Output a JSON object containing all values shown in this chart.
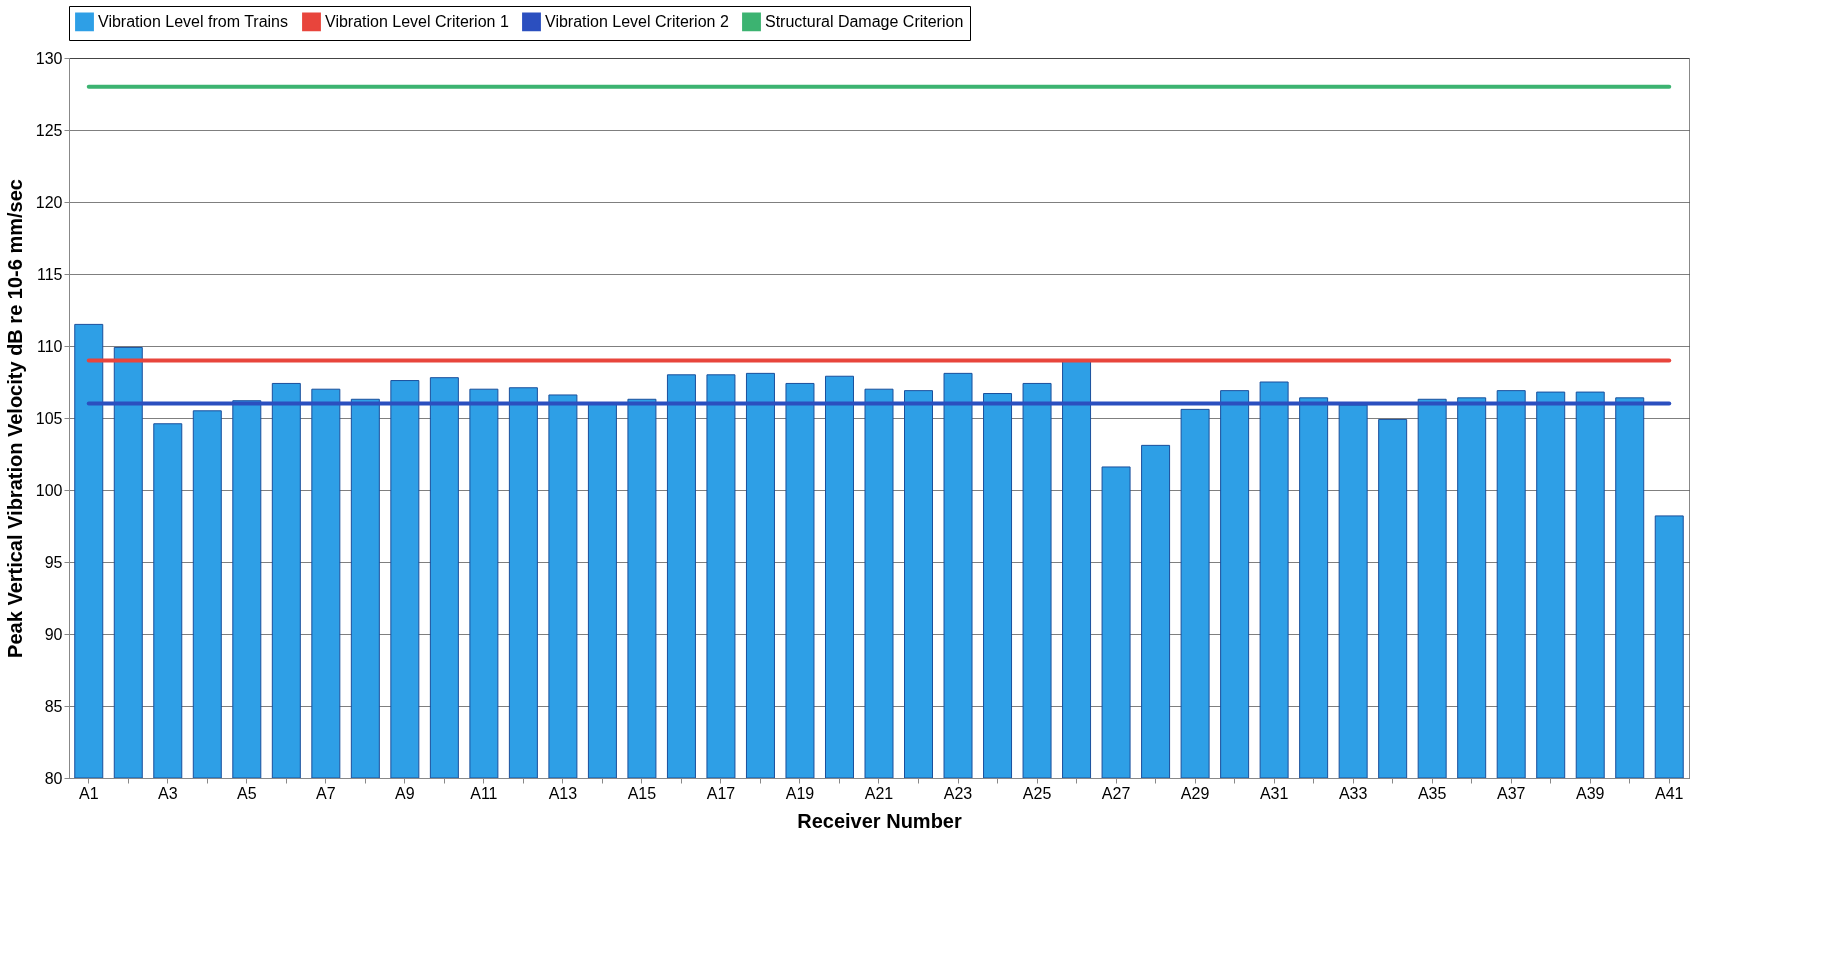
{
  "chart_data": {
    "type": "bar",
    "xlabel": "Receiver Number",
    "ylabel": "Peak Vertical Vibration Velocity dB re 10-6 mm/sec",
    "categories": [
      "A1",
      null,
      "A3",
      null,
      "A5",
      null,
      "A7",
      null,
      "A9",
      null,
      "A11",
      null,
      "A13",
      null,
      "A15",
      null,
      "A17",
      null,
      "A19",
      null,
      "A21",
      null,
      "A23",
      null,
      "A25",
      null,
      "A27",
      null,
      "A29",
      null,
      "A31",
      null,
      "A33",
      null,
      "A35",
      null,
      "A37",
      null,
      "A39",
      null,
      "A41"
    ],
    "series": [
      {
        "name": "Vibration Level from Trains",
        "color": "#2e9fe6",
        "values": [
          111.5,
          109.9,
          104.6,
          105.5,
          106.2,
          107.4,
          107.0,
          106.3,
          107.6,
          107.8,
          107.0,
          107.1,
          106.6,
          106.0,
          106.3,
          108.0,
          108.0,
          108.1,
          107.4,
          107.9,
          107.0,
          106.9,
          108.1,
          106.7,
          107.4,
          109.0,
          101.6,
          103.1,
          105.6,
          106.9,
          107.5,
          106.4,
          105.9,
          104.9,
          106.3,
          106.4,
          106.9,
          106.8,
          106.8,
          106.4,
          98.2
        ]
      },
      {
        "name": "Vibration Level Criterion 1",
        "type": "line",
        "color": "#e8453c",
        "values": [
          109,
          109,
          109,
          109,
          109,
          109,
          109,
          109,
          109,
          109,
          109,
          109,
          109,
          109,
          109,
          109,
          109,
          109,
          109,
          109,
          109,
          109,
          109,
          109,
          109,
          109,
          109,
          109,
          109,
          109,
          109,
          109,
          109,
          109,
          109,
          109,
          109,
          109,
          109,
          109,
          109
        ]
      },
      {
        "name": "Vibration Level Criterion 2",
        "type": "line",
        "color": "#2b4fbf",
        "values": [
          106,
          106,
          106,
          106,
          106,
          106,
          106,
          106,
          106,
          106,
          106,
          106,
          106,
          106,
          106,
          106,
          106,
          106,
          106,
          106,
          106,
          106,
          106,
          106,
          106,
          106,
          106,
          106,
          106,
          106,
          106,
          106,
          106,
          106,
          106,
          106,
          106,
          106,
          106,
          106,
          106
        ]
      },
      {
        "name": "Structural Damage Criterion",
        "type": "line",
        "color": "#3cb371",
        "values": [
          128,
          128,
          128,
          128,
          128,
          128,
          128,
          128,
          128,
          128,
          128,
          128,
          128,
          128,
          128,
          128,
          128,
          128,
          128,
          128,
          128,
          128,
          128,
          128,
          128,
          128,
          128,
          128,
          128,
          128,
          128,
          128,
          128,
          128,
          128,
          128,
          128,
          128,
          128,
          128,
          128
        ]
      }
    ],
    "ylim": [
      80,
      130
    ],
    "yticks": [
      80,
      85,
      90,
      95,
      100,
      105,
      110,
      115,
      120,
      125,
      130
    ],
    "grid": "y",
    "legend": "top"
  }
}
